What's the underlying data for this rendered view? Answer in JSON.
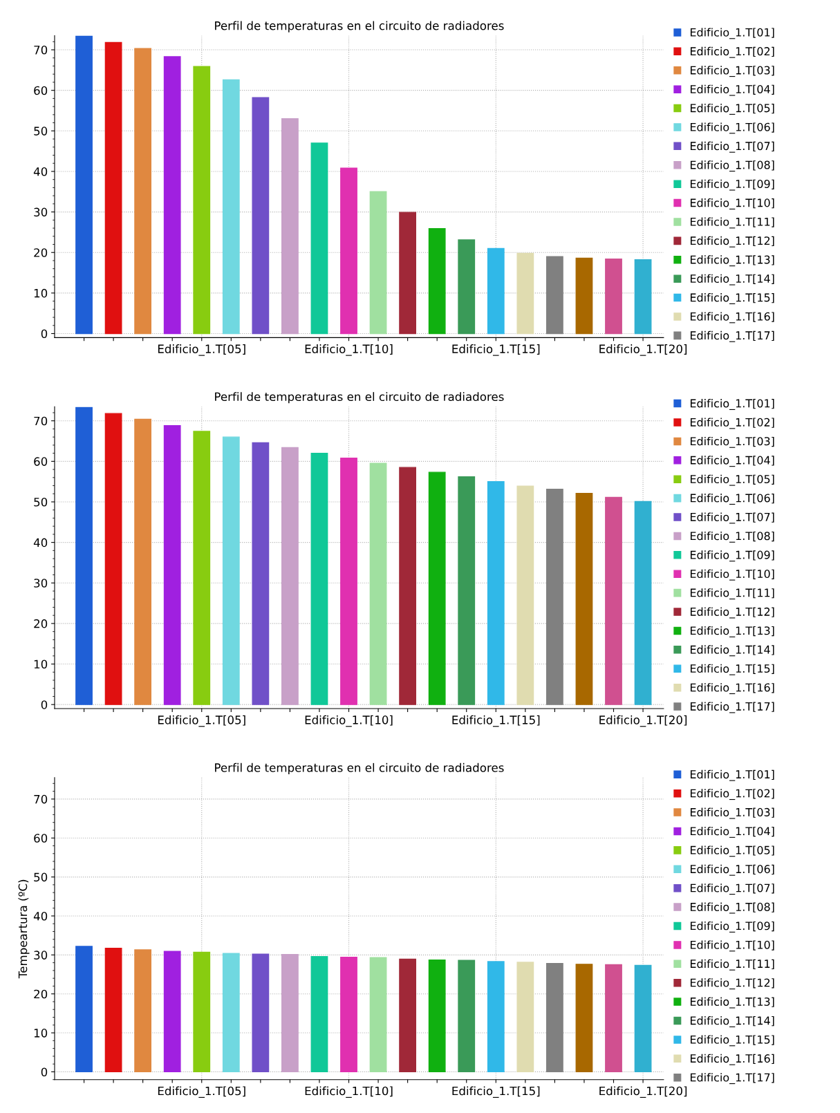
{
  "chart_data": [
    {
      "type": "bar",
      "title": "Perfil de temperaturas en el circuito de radiadores",
      "categories": [
        null,
        null,
        null,
        null,
        "Edificio_1.T[05]",
        null,
        null,
        null,
        null,
        "Edificio_1.T[10]",
        null,
        null,
        null,
        null,
        "Edificio_1.T[15]",
        null,
        null,
        null,
        null,
        "Edificio_1.T[20]"
      ],
      "ylim": [
        -1,
        73.5
      ],
      "yticks": [
        0,
        10,
        20,
        30,
        40,
        50,
        60,
        70
      ],
      "grid": true,
      "legend": "right",
      "series": [
        {
          "name": "Edificio_1.T[01]",
          "color": "#1f5fd6",
          "values": [
            73.4,
            null,
            null,
            null,
            null,
            null,
            null,
            null,
            null,
            null,
            null,
            null,
            null,
            null,
            null,
            null,
            null,
            null,
            null,
            null
          ]
        },
        {
          "name": "Edificio_1.T[02]",
          "color": "#e01010",
          "values": [
            null,
            71.8,
            null,
            null,
            null,
            null,
            null,
            null,
            null,
            null,
            null,
            null,
            null,
            null,
            null,
            null,
            null,
            null,
            null,
            null
          ]
        },
        {
          "name": "Edificio_1.T[03]",
          "color": "#e08840",
          "values": [
            null,
            null,
            70.3,
            null,
            null,
            null,
            null,
            null,
            null,
            null,
            null,
            null,
            null,
            null,
            null,
            null,
            null,
            null,
            null,
            null
          ]
        },
        {
          "name": "Edificio_1.T[04]",
          "color": "#a020e0",
          "values": [
            null,
            null,
            null,
            68.3,
            null,
            null,
            null,
            null,
            null,
            null,
            null,
            null,
            null,
            null,
            null,
            null,
            null,
            null,
            null,
            null
          ]
        },
        {
          "name": "Edificio_1.T[05]",
          "color": "#88cc10",
          "values": [
            null,
            null,
            null,
            null,
            65.9,
            null,
            null,
            null,
            null,
            null,
            null,
            null,
            null,
            null,
            null,
            null,
            null,
            null,
            null,
            null
          ]
        },
        {
          "name": "Edificio_1.T[06]",
          "color": "#70d8e0",
          "values": [
            null,
            null,
            null,
            null,
            null,
            62.6,
            null,
            null,
            null,
            null,
            null,
            null,
            null,
            null,
            null,
            null,
            null,
            null,
            null,
            null
          ]
        },
        {
          "name": "Edificio_1.T[07]",
          "color": "#7050c8",
          "values": [
            null,
            null,
            null,
            null,
            null,
            null,
            58.2,
            null,
            null,
            null,
            null,
            null,
            null,
            null,
            null,
            null,
            null,
            null,
            null,
            null
          ]
        },
        {
          "name": "Edificio_1.T[08]",
          "color": "#c8a0c8",
          "values": [
            null,
            null,
            null,
            null,
            null,
            null,
            null,
            53.0,
            null,
            null,
            null,
            null,
            null,
            null,
            null,
            null,
            null,
            null,
            null,
            null
          ]
        },
        {
          "name": "Edificio_1.T[09]",
          "color": "#10c898",
          "values": [
            null,
            null,
            null,
            null,
            null,
            null,
            null,
            null,
            47.0,
            null,
            null,
            null,
            null,
            null,
            null,
            null,
            null,
            null,
            null,
            null
          ]
        },
        {
          "name": "Edificio_1.T[10]",
          "color": "#e030b0",
          "values": [
            null,
            null,
            null,
            null,
            null,
            null,
            null,
            null,
            null,
            40.8,
            null,
            null,
            null,
            null,
            null,
            null,
            null,
            null,
            null,
            null
          ]
        },
        {
          "name": "Edificio_1.T[11]",
          "color": "#a0e0a0",
          "values": [
            null,
            null,
            null,
            null,
            null,
            null,
            null,
            null,
            null,
            null,
            35.0,
            null,
            null,
            null,
            null,
            null,
            null,
            null,
            null,
            null
          ]
        },
        {
          "name": "Edificio_1.T[12]",
          "color": "#a02838",
          "values": [
            null,
            null,
            null,
            null,
            null,
            null,
            null,
            null,
            null,
            null,
            null,
            29.9,
            null,
            null,
            null,
            null,
            null,
            null,
            null,
            null
          ]
        },
        {
          "name": "Edificio_1.T[13]",
          "color": "#10b010",
          "values": [
            null,
            null,
            null,
            null,
            null,
            null,
            null,
            null,
            null,
            null,
            null,
            null,
            25.9,
            null,
            null,
            null,
            null,
            null,
            null,
            null
          ]
        },
        {
          "name": "Edificio_1.T[14]",
          "color": "#3a9a58",
          "values": [
            null,
            null,
            null,
            null,
            null,
            null,
            null,
            null,
            null,
            null,
            null,
            null,
            null,
            23.1,
            null,
            null,
            null,
            null,
            null,
            null
          ]
        },
        {
          "name": "Edificio_1.T[15]",
          "color": "#30b8e8",
          "values": [
            null,
            null,
            null,
            null,
            null,
            null,
            null,
            null,
            null,
            null,
            null,
            null,
            null,
            null,
            21.0,
            null,
            null,
            null,
            null,
            null
          ]
        },
        {
          "name": "Edificio_1.T[16]",
          "color": "#e0dcb0",
          "values": [
            null,
            null,
            null,
            null,
            null,
            null,
            null,
            null,
            null,
            null,
            null,
            null,
            null,
            null,
            null,
            19.8,
            null,
            null,
            null,
            null
          ]
        },
        {
          "name": "Edificio_1.T[17]",
          "color": "#808080",
          "values": [
            null,
            null,
            null,
            null,
            null,
            null,
            null,
            null,
            null,
            null,
            null,
            null,
            null,
            null,
            null,
            null,
            19.0,
            null,
            null,
            null
          ]
        },
        {
          "color": "#a86800",
          "values": [
            null,
            null,
            null,
            null,
            null,
            null,
            null,
            null,
            null,
            null,
            null,
            null,
            null,
            null,
            null,
            null,
            null,
            18.6,
            null,
            null
          ]
        },
        {
          "color": "#d05090",
          "values": [
            null,
            null,
            null,
            null,
            null,
            null,
            null,
            null,
            null,
            null,
            null,
            null,
            null,
            null,
            null,
            null,
            null,
            null,
            18.4,
            null
          ]
        },
        {
          "color": "#30b0d0",
          "values": [
            null,
            null,
            null,
            null,
            null,
            null,
            null,
            null,
            null,
            null,
            null,
            null,
            null,
            null,
            null,
            null,
            null,
            null,
            null,
            18.2
          ]
        }
      ]
    },
    {
      "type": "bar",
      "title": "Perfil de temperaturas en el circuito de radiadores",
      "categories": [
        null,
        null,
        null,
        null,
        "Edificio_1.T[05]",
        null,
        null,
        null,
        null,
        "Edificio_1.T[10]",
        null,
        null,
        null,
        null,
        "Edificio_1.T[15]",
        null,
        null,
        null,
        null,
        "Edificio_1.T[20]"
      ],
      "ylim": [
        -1,
        73.5
      ],
      "yticks": [
        0,
        10,
        20,
        30,
        40,
        50,
        60,
        70
      ],
      "grid": true,
      "legend": "right",
      "series": [
        {
          "name": "Edificio_1.T[01]",
          "color": "#1f5fd6",
          "values": [
            73.3,
            null,
            null,
            null,
            null,
            null,
            null,
            null,
            null,
            null,
            null,
            null,
            null,
            null,
            null,
            null,
            null,
            null,
            null,
            null
          ]
        },
        {
          "name": "Edificio_1.T[02]",
          "color": "#e01010",
          "values": [
            null,
            71.8,
            null,
            null,
            null,
            null,
            null,
            null,
            null,
            null,
            null,
            null,
            null,
            null,
            null,
            null,
            null,
            null,
            null,
            null
          ]
        },
        {
          "name": "Edificio_1.T[03]",
          "color": "#e08840",
          "values": [
            null,
            null,
            70.4,
            null,
            null,
            null,
            null,
            null,
            null,
            null,
            null,
            null,
            null,
            null,
            null,
            null,
            null,
            null,
            null,
            null
          ]
        },
        {
          "name": "Edificio_1.T[04]",
          "color": "#a020e0",
          "values": [
            null,
            null,
            null,
            68.8,
            null,
            null,
            null,
            null,
            null,
            null,
            null,
            null,
            null,
            null,
            null,
            null,
            null,
            null,
            null,
            null
          ]
        },
        {
          "name": "Edificio_1.T[05]",
          "color": "#88cc10",
          "values": [
            null,
            null,
            null,
            null,
            67.4,
            null,
            null,
            null,
            null,
            null,
            null,
            null,
            null,
            null,
            null,
            null,
            null,
            null,
            null,
            null
          ]
        },
        {
          "name": "Edificio_1.T[06]",
          "color": "#70d8e0",
          "values": [
            null,
            null,
            null,
            null,
            null,
            66.0,
            null,
            null,
            null,
            null,
            null,
            null,
            null,
            null,
            null,
            null,
            null,
            null,
            null,
            null
          ]
        },
        {
          "name": "Edificio_1.T[07]",
          "color": "#7050c8",
          "values": [
            null,
            null,
            null,
            null,
            null,
            null,
            64.6,
            null,
            null,
            null,
            null,
            null,
            null,
            null,
            null,
            null,
            null,
            null,
            null,
            null
          ]
        },
        {
          "name": "Edificio_1.T[08]",
          "color": "#c8a0c8",
          "values": [
            null,
            null,
            null,
            null,
            null,
            null,
            null,
            63.4,
            null,
            null,
            null,
            null,
            null,
            null,
            null,
            null,
            null,
            null,
            null,
            null
          ]
        },
        {
          "name": "Edificio_1.T[09]",
          "color": "#10c898",
          "values": [
            null,
            null,
            null,
            null,
            null,
            null,
            null,
            null,
            62.0,
            null,
            null,
            null,
            null,
            null,
            null,
            null,
            null,
            null,
            null,
            null
          ]
        },
        {
          "name": "Edificio_1.T[10]",
          "color": "#e030b0",
          "values": [
            null,
            null,
            null,
            null,
            null,
            null,
            null,
            null,
            null,
            60.8,
            null,
            null,
            null,
            null,
            null,
            null,
            null,
            null,
            null,
            null
          ]
        },
        {
          "name": "Edificio_1.T[11]",
          "color": "#a0e0a0",
          "values": [
            null,
            null,
            null,
            null,
            null,
            null,
            null,
            null,
            null,
            null,
            59.5,
            null,
            null,
            null,
            null,
            null,
            null,
            null,
            null,
            null
          ]
        },
        {
          "name": "Edificio_1.T[12]",
          "color": "#a02838",
          "values": [
            null,
            null,
            null,
            null,
            null,
            null,
            null,
            null,
            null,
            null,
            null,
            58.5,
            null,
            null,
            null,
            null,
            null,
            null,
            null,
            null
          ]
        },
        {
          "name": "Edificio_1.T[13]",
          "color": "#10b010",
          "values": [
            null,
            null,
            null,
            null,
            null,
            null,
            null,
            null,
            null,
            null,
            null,
            null,
            57.3,
            null,
            null,
            null,
            null,
            null,
            null,
            null
          ]
        },
        {
          "name": "Edificio_1.T[14]",
          "color": "#3a9a58",
          "values": [
            null,
            null,
            null,
            null,
            null,
            null,
            null,
            null,
            null,
            null,
            null,
            null,
            null,
            56.2,
            null,
            null,
            null,
            null,
            null,
            null
          ]
        },
        {
          "name": "Edificio_1.T[15]",
          "color": "#30b8e8",
          "values": [
            null,
            null,
            null,
            null,
            null,
            null,
            null,
            null,
            null,
            null,
            null,
            null,
            null,
            null,
            55.0,
            null,
            null,
            null,
            null,
            null
          ]
        },
        {
          "name": "Edificio_1.T[16]",
          "color": "#e0dcb0",
          "values": [
            null,
            null,
            null,
            null,
            null,
            null,
            null,
            null,
            null,
            null,
            null,
            null,
            null,
            null,
            null,
            53.9,
            null,
            null,
            null,
            null
          ]
        },
        {
          "name": "Edificio_1.T[17]",
          "color": "#808080",
          "values": [
            null,
            null,
            null,
            null,
            null,
            null,
            null,
            null,
            null,
            null,
            null,
            null,
            null,
            null,
            null,
            null,
            53.1,
            null,
            null,
            null
          ]
        },
        {
          "color": "#a86800",
          "values": [
            null,
            null,
            null,
            null,
            null,
            null,
            null,
            null,
            null,
            null,
            null,
            null,
            null,
            null,
            null,
            null,
            null,
            52.1,
            null,
            null
          ]
        },
        {
          "color": "#d05090",
          "values": [
            null,
            null,
            null,
            null,
            null,
            null,
            null,
            null,
            null,
            null,
            null,
            null,
            null,
            null,
            null,
            null,
            null,
            null,
            51.1,
            null
          ]
        },
        {
          "color": "#30b0d0",
          "values": [
            null,
            null,
            null,
            null,
            null,
            null,
            null,
            null,
            null,
            null,
            null,
            null,
            null,
            null,
            null,
            null,
            null,
            null,
            null,
            50.1
          ]
        }
      ]
    },
    {
      "type": "bar",
      "title": "Perfil de temperaturas en el circuito de radiadores",
      "ylabel": "Tempeartura (ºC)",
      "categories": [
        null,
        null,
        null,
        null,
        "Edificio_1.T[05]",
        null,
        null,
        null,
        null,
        "Edificio_1.T[10]",
        null,
        null,
        null,
        null,
        "Edificio_1.T[15]",
        null,
        null,
        null,
        null,
        "Edificio_1.T[20]"
      ],
      "ylim": [
        -2,
        75.5
      ],
      "yticks": [
        0,
        10,
        20,
        30,
        40,
        50,
        60,
        70
      ],
      "grid": true,
      "legend": "right",
      "series": [
        {
          "name": "Edificio_1.T[01]",
          "color": "#1f5fd6",
          "values": [
            32.2,
            null,
            null,
            null,
            null,
            null,
            null,
            null,
            null,
            null,
            null,
            null,
            null,
            null,
            null,
            null,
            null,
            null,
            null,
            null
          ]
        },
        {
          "name": "Edificio_1.T[02]",
          "color": "#e01010",
          "values": [
            null,
            31.7,
            null,
            null,
            null,
            null,
            null,
            null,
            null,
            null,
            null,
            null,
            null,
            null,
            null,
            null,
            null,
            null,
            null,
            null
          ]
        },
        {
          "name": "Edificio_1.T[03]",
          "color": "#e08840",
          "values": [
            null,
            null,
            31.3,
            null,
            null,
            null,
            null,
            null,
            null,
            null,
            null,
            null,
            null,
            null,
            null,
            null,
            null,
            null,
            null,
            null
          ]
        },
        {
          "name": "Edificio_1.T[04]",
          "color": "#a020e0",
          "values": [
            null,
            null,
            null,
            30.9,
            null,
            null,
            null,
            null,
            null,
            null,
            null,
            null,
            null,
            null,
            null,
            null,
            null,
            null,
            null,
            null
          ]
        },
        {
          "name": "Edificio_1.T[05]",
          "color": "#88cc10",
          "values": [
            null,
            null,
            null,
            null,
            30.7,
            null,
            null,
            null,
            null,
            null,
            null,
            null,
            null,
            null,
            null,
            null,
            null,
            null,
            null,
            null
          ]
        },
        {
          "name": "Edificio_1.T[06]",
          "color": "#70d8e0",
          "values": [
            null,
            null,
            null,
            null,
            null,
            30.4,
            null,
            null,
            null,
            null,
            null,
            null,
            null,
            null,
            null,
            null,
            null,
            null,
            null,
            null
          ]
        },
        {
          "name": "Edificio_1.T[07]",
          "color": "#7050c8",
          "values": [
            null,
            null,
            null,
            null,
            null,
            null,
            30.2,
            null,
            null,
            null,
            null,
            null,
            null,
            null,
            null,
            null,
            null,
            null,
            null,
            null
          ]
        },
        {
          "name": "Edificio_1.T[08]",
          "color": "#c8a0c8",
          "values": [
            null,
            null,
            null,
            null,
            null,
            null,
            null,
            30.1,
            null,
            null,
            null,
            null,
            null,
            null,
            null,
            null,
            null,
            null,
            null,
            null
          ]
        },
        {
          "name": "Edificio_1.T[09]",
          "color": "#10c898",
          "values": [
            null,
            null,
            null,
            null,
            null,
            null,
            null,
            null,
            29.6,
            null,
            null,
            null,
            null,
            null,
            null,
            null,
            null,
            null,
            null,
            null
          ]
        },
        {
          "name": "Edificio_1.T[10]",
          "color": "#e030b0",
          "values": [
            null,
            null,
            null,
            null,
            null,
            null,
            null,
            null,
            null,
            29.4,
            null,
            null,
            null,
            null,
            null,
            null,
            null,
            null,
            null,
            null
          ]
        },
        {
          "name": "Edificio_1.T[11]",
          "color": "#a0e0a0",
          "values": [
            null,
            null,
            null,
            null,
            null,
            null,
            null,
            null,
            null,
            null,
            29.3,
            null,
            null,
            null,
            null,
            null,
            null,
            null,
            null,
            null
          ]
        },
        {
          "name": "Edificio_1.T[12]",
          "color": "#a02838",
          "values": [
            null,
            null,
            null,
            null,
            null,
            null,
            null,
            null,
            null,
            null,
            null,
            28.9,
            null,
            null,
            null,
            null,
            null,
            null,
            null,
            null
          ]
        },
        {
          "name": "Edificio_1.T[13]",
          "color": "#10b010",
          "values": [
            null,
            null,
            null,
            null,
            null,
            null,
            null,
            null,
            null,
            null,
            null,
            null,
            28.7,
            null,
            null,
            null,
            null,
            null,
            null,
            null
          ]
        },
        {
          "name": "Edificio_1.T[14]",
          "color": "#3a9a58",
          "values": [
            null,
            null,
            null,
            null,
            null,
            null,
            null,
            null,
            null,
            null,
            null,
            null,
            null,
            28.6,
            null,
            null,
            null,
            null,
            null,
            null
          ]
        },
        {
          "name": "Edificio_1.T[15]",
          "color": "#30b8e8",
          "values": [
            null,
            null,
            null,
            null,
            null,
            null,
            null,
            null,
            null,
            null,
            null,
            null,
            null,
            null,
            28.3,
            null,
            null,
            null,
            null,
            null
          ]
        },
        {
          "name": "Edificio_1.T[16]",
          "color": "#e0dcb0",
          "values": [
            null,
            null,
            null,
            null,
            null,
            null,
            null,
            null,
            null,
            null,
            null,
            null,
            null,
            null,
            null,
            28.1,
            null,
            null,
            null,
            null
          ]
        },
        {
          "name": "Edificio_1.T[17]",
          "color": "#808080",
          "values": [
            null,
            null,
            null,
            null,
            null,
            null,
            null,
            null,
            null,
            null,
            null,
            null,
            null,
            null,
            null,
            null,
            27.8,
            null,
            null,
            null
          ]
        },
        {
          "color": "#a86800",
          "values": [
            null,
            null,
            null,
            null,
            null,
            null,
            null,
            null,
            null,
            null,
            null,
            null,
            null,
            null,
            null,
            null,
            null,
            27.6,
            null,
            null
          ]
        },
        {
          "color": "#d05090",
          "values": [
            null,
            null,
            null,
            null,
            null,
            null,
            null,
            null,
            null,
            null,
            null,
            null,
            null,
            null,
            null,
            null,
            null,
            null,
            27.5,
            null
          ]
        },
        {
          "color": "#30b0d0",
          "values": [
            null,
            null,
            null,
            null,
            null,
            null,
            null,
            null,
            null,
            null,
            null,
            null,
            null,
            null,
            null,
            null,
            null,
            null,
            null,
            27.3
          ]
        }
      ]
    }
  ]
}
